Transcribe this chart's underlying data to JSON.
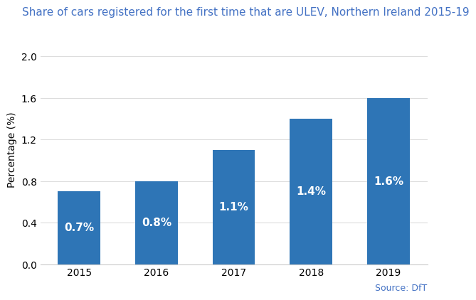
{
  "title": "Share of cars registered for the first time that are ULEV, Northern Ireland 2015-19",
  "categories": [
    "2015",
    "2016",
    "2017",
    "2018",
    "2019"
  ],
  "values": [
    0.7,
    0.8,
    1.1,
    1.4,
    1.6
  ],
  "labels": [
    "0.7%",
    "0.8%",
    "1.1%",
    "1.4%",
    "1.6%"
  ],
  "bar_color": "#2E75B6",
  "title_color": "#4472C4",
  "ylabel": "Percentage (%)",
  "ylim": [
    0,
    2.2
  ],
  "yticks": [
    0.0,
    0.4,
    0.8,
    1.2,
    1.6,
    2.0
  ],
  "source_text": "Source: DfT",
  "source_color": "#4472C4",
  "background_color": "#FFFFFF",
  "label_color": "#FFFFFF",
  "label_fontsize": 11,
  "title_fontsize": 11,
  "axis_fontsize": 10,
  "source_fontsize": 9
}
